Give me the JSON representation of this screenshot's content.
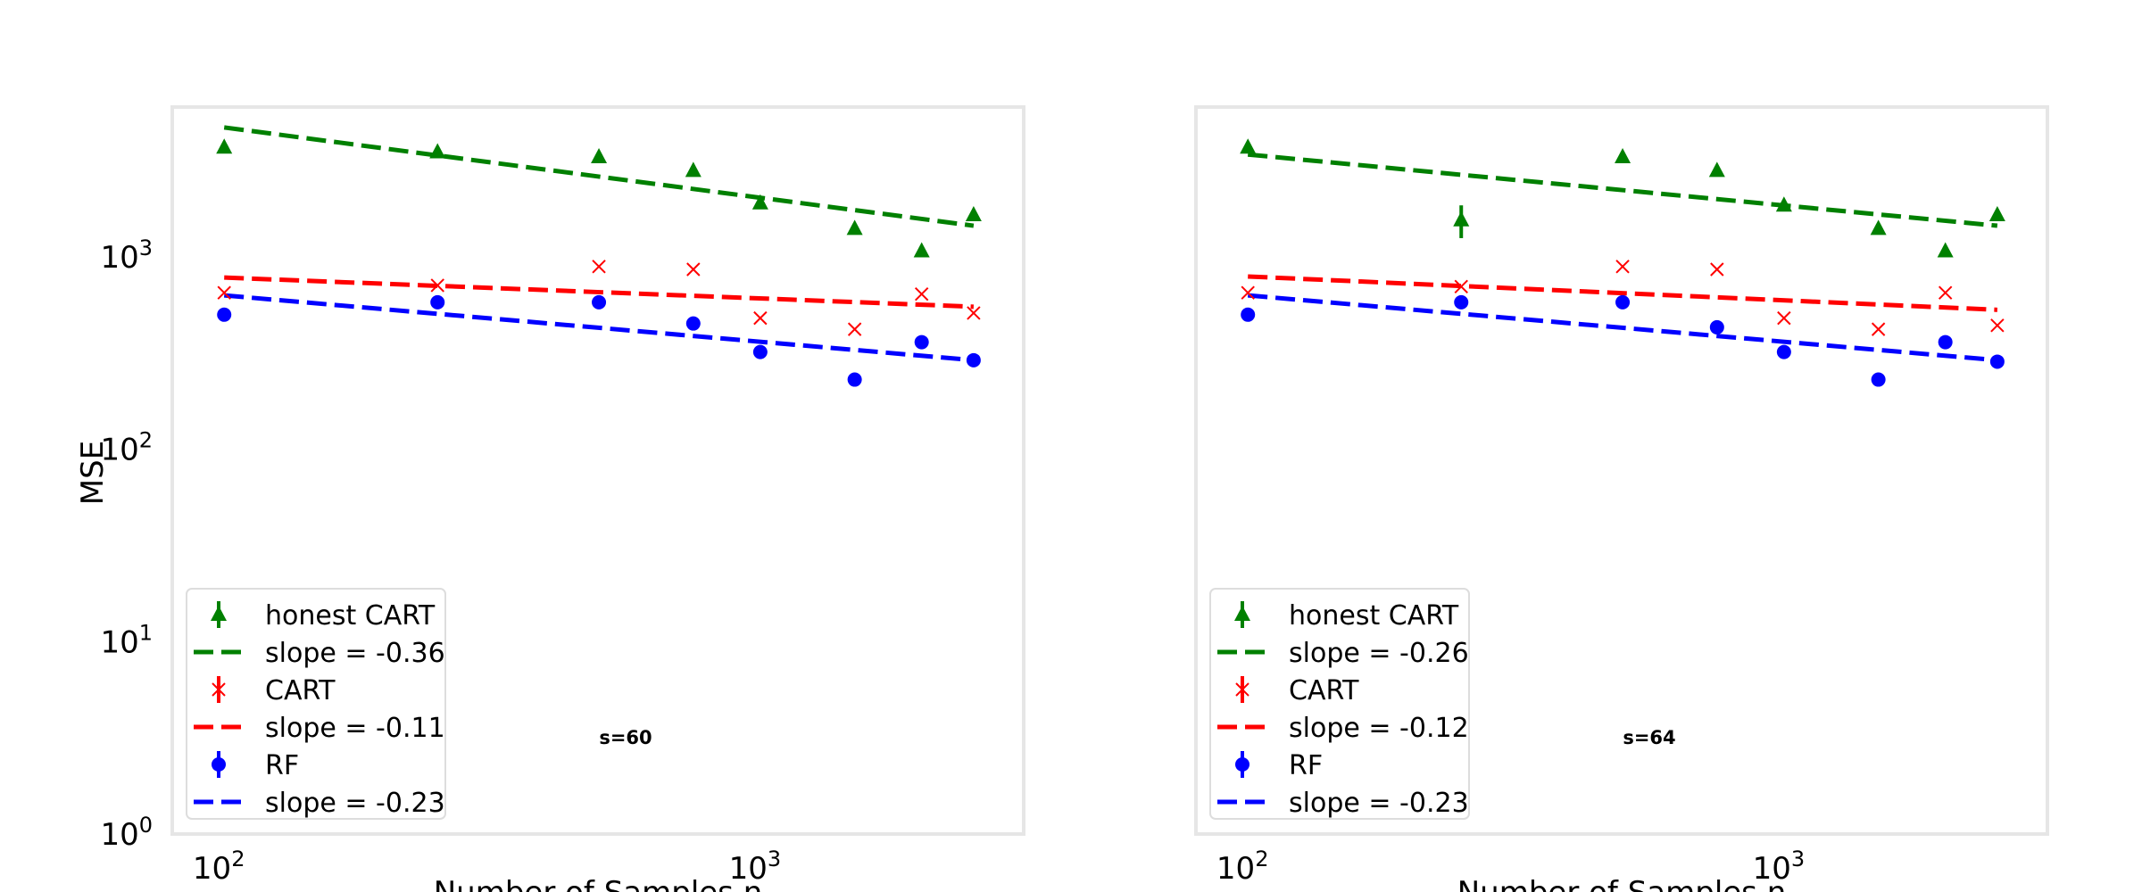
{
  "figure": {
    "ylabel": "MSE"
  },
  "chart_data": [
    {
      "type": "scatter",
      "annotation": "s=60",
      "xlabel": "Number of Samples n",
      "ylabel": "MSE",
      "xscale": "log",
      "yscale": "log",
      "xlim": [
        80,
        3100
      ],
      "ylim": [
        1,
        6000
      ],
      "xticks": [
        {
          "value": 100,
          "base": "10",
          "exp": "2"
        },
        {
          "value": 1000,
          "base": "10",
          "exp": "3"
        }
      ],
      "yticks": [
        {
          "value": 1,
          "base": "10",
          "exp": "0"
        },
        {
          "value": 10,
          "base": "10",
          "exp": "1"
        },
        {
          "value": 100,
          "base": "10",
          "exp": "2"
        },
        {
          "value": 1000,
          "base": "10",
          "exp": "3"
        }
      ],
      "grid": false,
      "legend_position": "lower-left",
      "x": [
        100,
        250,
        500,
        750,
        1000,
        1500,
        2000,
        2500
      ],
      "series": [
        {
          "name": "honest CART",
          "marker": "triangle",
          "color": "#008000",
          "values": [
            3700,
            3500,
            3300,
            2800,
            1900,
            1400,
            1070,
            1650
          ]
        },
        {
          "name": "CART",
          "marker": "x",
          "color": "#ff0000",
          "values": [
            650,
            710,
            890,
            860,
            480,
            420,
            640,
            510
          ]
        },
        {
          "name": "RF",
          "marker": "circle",
          "color": "#0000ff",
          "values": [
            500,
            580,
            580,
            450,
            320,
            230,
            360,
            290
          ]
        }
      ],
      "fits": [
        {
          "name": "slope = -0.36",
          "color": "#008000",
          "x_range": [
            100,
            2500
          ],
          "y_range": [
            4700,
            1450
          ]
        },
        {
          "name": "slope = -0.11",
          "color": "#ff0000",
          "x_range": [
            100,
            2500
          ],
          "y_range": [
            780,
            550
          ]
        },
        {
          "name": "slope = -0.23",
          "color": "#0000ff",
          "x_range": [
            100,
            2500
          ],
          "y_range": [
            630,
            290
          ]
        }
      ]
    },
    {
      "type": "scatter",
      "annotation": "s=64",
      "xlabel": "Number of Samples n",
      "ylabel": "",
      "xscale": "log",
      "yscale": "log",
      "xlim": [
        80,
        3100
      ],
      "ylim": [
        1,
        6000
      ],
      "xticks": [
        {
          "value": 100,
          "base": "10",
          "exp": "2"
        },
        {
          "value": 1000,
          "base": "10",
          "exp": "3"
        }
      ],
      "yticks": [],
      "grid": false,
      "legend_position": "lower-left",
      "x": [
        100,
        250,
        500,
        750,
        1000,
        1500,
        2000,
        2500
      ],
      "series": [
        {
          "name": "honest CART",
          "marker": "triangle",
          "color": "#008000",
          "values": [
            3700,
            1550,
            3300,
            2800,
            1850,
            1400,
            1070,
            1650
          ],
          "errors": [
            0,
            300,
            0,
            0,
            0,
            0,
            0,
            0
          ]
        },
        {
          "name": "CART",
          "marker": "x",
          "color": "#ff0000",
          "values": [
            650,
            700,
            890,
            860,
            480,
            420,
            650,
            440
          ]
        },
        {
          "name": "RF",
          "marker": "circle",
          "color": "#0000ff",
          "values": [
            500,
            580,
            580,
            430,
            320,
            230,
            360,
            285
          ]
        }
      ],
      "fits": [
        {
          "name": "slope = -0.26",
          "color": "#008000",
          "x_range": [
            100,
            2500
          ],
          "y_range": [
            3400,
            1450
          ]
        },
        {
          "name": "slope = -0.12",
          "color": "#ff0000",
          "x_range": [
            100,
            2500
          ],
          "y_range": [
            790,
            530
          ]
        },
        {
          "name": "slope = -0.23",
          "color": "#0000ff",
          "x_range": [
            100,
            2500
          ],
          "y_range": [
            630,
            290
          ]
        }
      ]
    }
  ]
}
